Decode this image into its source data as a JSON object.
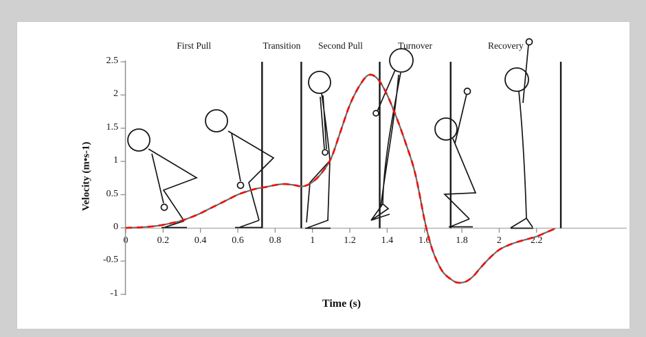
{
  "page": {
    "background_color": "#d0d0d0",
    "panel_background_color": "#ffffff"
  },
  "chart_data": {
    "type": "line",
    "title": "",
    "xlabel": "Time (s)",
    "ylabel": "Velocity (m•s-1)",
    "xlim": [
      0,
      2.35
    ],
    "ylim": [
      -1,
      2.5
    ],
    "xticks": [
      "0",
      "0.2",
      "0.4",
      "0.6",
      "0.8",
      "1",
      "1.2",
      "1.4",
      "1.6",
      "1.8",
      "2",
      "2.2"
    ],
    "yticks": [
      "2.5",
      "2",
      "1.5",
      "1",
      "0.5",
      "0",
      "-0.5",
      "-1"
    ],
    "grid": false,
    "legend_visible": false,
    "line_color": "#6b6b6b",
    "overlay_dash_color": "#e8140f",
    "axis_color": "#8f8f8f",
    "zero_line_color": "#b3b3b3",
    "phase_line_color": "#161616",
    "phases": [
      {
        "label": "First Pull",
        "start_s": 0,
        "end_s": 0.73
      },
      {
        "label": "Transition",
        "start_s": 0.73,
        "end_s": 0.94
      },
      {
        "label": "Second Pull",
        "start_s": 0.94,
        "end_s": 1.36
      },
      {
        "label": "Turnover",
        "start_s": 1.36,
        "end_s": 1.74
      },
      {
        "label": "Recovery",
        "start_s": 1.74,
        "end_s": 2.33
      }
    ],
    "phase_boundaries_s": [
      0.73,
      0.94,
      1.36,
      1.74,
      2.33
    ],
    "series": [
      {
        "points": [
          [
            0,
            0
          ],
          [
            0.05,
            0.005
          ],
          [
            0.1,
            0.012
          ],
          [
            0.15,
            0.025
          ],
          [
            0.2,
            0.045
          ],
          [
            0.25,
            0.075
          ],
          [
            0.3,
            0.11
          ],
          [
            0.35,
            0.16
          ],
          [
            0.4,
            0.22
          ],
          [
            0.45,
            0.29
          ],
          [
            0.5,
            0.36
          ],
          [
            0.55,
            0.43
          ],
          [
            0.6,
            0.5
          ],
          [
            0.65,
            0.55
          ],
          [
            0.7,
            0.59
          ],
          [
            0.75,
            0.615
          ],
          [
            0.8,
            0.645
          ],
          [
            0.85,
            0.66
          ],
          [
            0.9,
            0.645
          ],
          [
            0.95,
            0.625
          ],
          [
            1,
            0.69
          ],
          [
            1.05,
            0.83
          ],
          [
            1.1,
            1.05
          ],
          [
            1.15,
            1.45
          ],
          [
            1.2,
            1.85
          ],
          [
            1.25,
            2.13
          ],
          [
            1.3,
            2.3
          ],
          [
            1.35,
            2.24
          ],
          [
            1.4,
            2
          ],
          [
            1.45,
            1.66
          ],
          [
            1.5,
            1.27
          ],
          [
            1.55,
            0.82
          ],
          [
            1.6,
            0.12
          ],
          [
            1.63,
            -0.22
          ],
          [
            1.66,
            -0.46
          ],
          [
            1.7,
            -0.67
          ],
          [
            1.75,
            -0.79
          ],
          [
            1.78,
            -0.825
          ],
          [
            1.82,
            -0.81
          ],
          [
            1.86,
            -0.73
          ],
          [
            1.9,
            -0.6
          ],
          [
            1.95,
            -0.45
          ],
          [
            2,
            -0.33
          ],
          [
            2.05,
            -0.26
          ],
          [
            2.1,
            -0.21
          ],
          [
            2.15,
            -0.17
          ],
          [
            2.2,
            -0.13
          ],
          [
            2.25,
            -0.07
          ],
          [
            2.3,
            -0.01
          ]
        ]
      }
    ],
    "figures": [
      "lifter-setup-crouch",
      "lifter-first-pull",
      "lifter-second-pull",
      "lifter-turnover-extension",
      "lifter-catch-squat",
      "lifter-recovery-stand"
    ]
  }
}
